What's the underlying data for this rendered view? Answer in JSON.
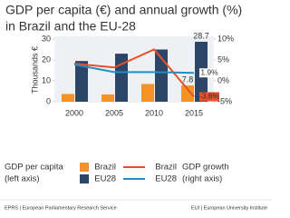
{
  "chart_data": {
    "type": "bar",
    "title": [
      "GDP per capita (€) and annual growth (%)",
      "in Brazil and the EU-28"
    ],
    "y_label": "Thousands €",
    "categories": [
      "2000",
      "2005",
      "2010",
      "2015"
    ],
    "ylim": [
      0,
      30
    ],
    "yticks": [
      0,
      10,
      20,
      30
    ],
    "y2lim": [
      -5,
      10
    ],
    "y2ticks": [
      {
        "value": -5,
        "label": "-5%"
      },
      {
        "value": 0,
        "label": "0%"
      },
      {
        "value": 5,
        "label": "5%"
      },
      {
        "value": 10,
        "label": "10%"
      }
    ],
    "series": [
      {
        "name": "Brazil",
        "type": "bar",
        "color": "#f39325",
        "values": [
          3.7,
          3.5,
          8.5,
          7.8
        ],
        "value_labels": [
          null,
          null,
          null,
          "7.8"
        ]
      },
      {
        "name": "EU28",
        "type": "bar",
        "color": "#2d4566",
        "values": [
          19.5,
          23,
          25,
          28.7
        ],
        "value_labels": [
          null,
          null,
          null,
          "28.7"
        ]
      },
      {
        "name": "Brazil",
        "type": "line",
        "axis": "y2",
        "color": "#e8502a",
        "values": [
          4.1,
          3.2,
          7.5,
          -3.8
        ],
        "value_labels": [
          null,
          null,
          null,
          "-3.8%"
        ]
      },
      {
        "name": "EU28",
        "type": "line",
        "axis": "y2",
        "color": "#1f8fc6",
        "values": [
          3.9,
          2.1,
          2.1,
          1.9
        ],
        "value_labels": [
          null,
          null,
          null,
          "1.9%"
        ]
      }
    ],
    "left_legend": [
      "GDP per capita",
      "(left axis)"
    ],
    "right_legend": [
      "GDP growth",
      "(right axis)"
    ]
  },
  "footer": {
    "left": "EPRS | European Parliamentary Research Service",
    "right": "EUI | European University Institute"
  }
}
